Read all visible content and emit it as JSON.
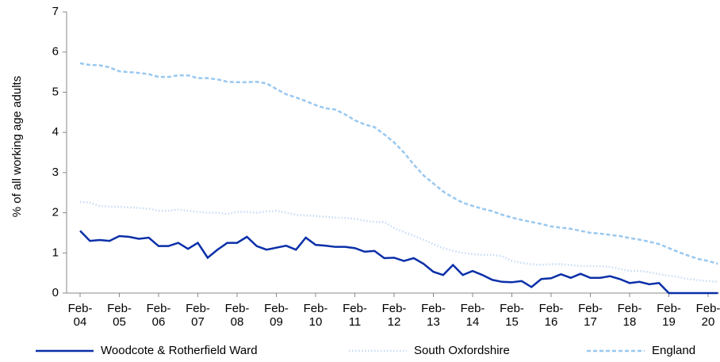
{
  "chart_data": {
    "type": "line",
    "y_label": "% of all working age adults",
    "categories": [
      "Feb-04",
      null,
      null,
      null,
      "Feb-05",
      null,
      null,
      null,
      "Feb-06",
      null,
      null,
      null,
      "Feb-07",
      null,
      null,
      null,
      "Feb-08",
      null,
      null,
      null,
      "Feb-09",
      null,
      null,
      null,
      "Feb-10",
      null,
      null,
      null,
      "Feb-11",
      null,
      null,
      null,
      "Feb-12",
      null,
      null,
      null,
      "Feb-13",
      null,
      null,
      null,
      "Feb-14",
      null,
      null,
      null,
      "Feb-15",
      null,
      null,
      null,
      "Feb-16",
      null,
      null,
      null,
      "Feb-17",
      null,
      null,
      null,
      "Feb-18",
      null,
      null,
      null,
      "Feb-19",
      null,
      null,
      null,
      "Feb-20",
      null
    ],
    "series": [
      {
        "name": "Woodcote & Rotherfield Ward",
        "color": "#0a2fa8",
        "dash": "solid",
        "values": [
          1.55,
          1.3,
          1.32,
          1.3,
          1.42,
          1.4,
          1.35,
          1.38,
          1.17,
          1.17,
          1.25,
          1.1,
          1.25,
          0.88,
          1.08,
          1.25,
          1.25,
          1.4,
          1.17,
          1.08,
          1.13,
          1.18,
          1.08,
          1.38,
          1.2,
          1.18,
          1.15,
          1.15,
          1.12,
          1.03,
          1.05,
          0.87,
          0.88,
          0.8,
          0.87,
          0.73,
          0.53,
          0.45,
          0.7,
          0.45,
          0.55,
          0.45,
          0.33,
          0.28,
          0.27,
          0.3,
          0.15,
          0.35,
          0.37,
          0.47,
          0.38,
          0.48,
          0.38,
          0.38,
          0.42,
          0.35,
          0.25,
          0.28,
          0.22,
          0.25,
          0,
          0,
          0,
          0,
          0,
          0
        ]
      },
      {
        "name": "South Oxfordshire",
        "color": "#c8dcf5",
        "dash": "dotted",
        "values": [
          2.27,
          2.25,
          2.17,
          2.15,
          2.15,
          2.13,
          2.12,
          2.1,
          2.05,
          2.05,
          2.08,
          2.05,
          2.02,
          2.0,
          2.0,
          1.97,
          2.02,
          2.02,
          2.0,
          2.03,
          2.05,
          2.0,
          1.95,
          1.93,
          1.92,
          1.9,
          1.88,
          1.87,
          1.85,
          1.8,
          1.77,
          1.77,
          1.62,
          1.52,
          1.43,
          1.33,
          1.22,
          1.12,
          1.05,
          1.0,
          0.97,
          0.95,
          0.95,
          0.92,
          0.8,
          0.75,
          0.72,
          0.7,
          0.72,
          0.72,
          0.7,
          0.67,
          0.67,
          0.67,
          0.65,
          0.6,
          0.55,
          0.55,
          0.52,
          0.47,
          0.43,
          0.4,
          0.35,
          0.32,
          0.3,
          0.28
        ]
      },
      {
        "name": "England",
        "color": "#99c8f0",
        "dash": "dashed",
        "values": [
          5.72,
          5.68,
          5.67,
          5.62,
          5.52,
          5.5,
          5.48,
          5.45,
          5.38,
          5.38,
          5.42,
          5.42,
          5.35,
          5.35,
          5.32,
          5.26,
          5.25,
          5.25,
          5.26,
          5.22,
          5.08,
          4.95,
          4.87,
          4.78,
          4.68,
          4.6,
          4.57,
          4.45,
          4.3,
          4.2,
          4.13,
          3.95,
          3.75,
          3.5,
          3.2,
          2.93,
          2.73,
          2.53,
          2.38,
          2.25,
          2.17,
          2.1,
          2.04,
          1.95,
          1.88,
          1.82,
          1.77,
          1.72,
          1.66,
          1.63,
          1.6,
          1.55,
          1.5,
          1.48,
          1.45,
          1.42,
          1.37,
          1.33,
          1.28,
          1.22,
          1.12,
          1.02,
          0.93,
          0.85,
          0.8,
          0.73
        ]
      }
    ],
    "ylim": [
      0,
      7
    ],
    "yticks": [
      0,
      1,
      2,
      3,
      4,
      5,
      6,
      7
    ],
    "grid": false,
    "legend": "bottom"
  }
}
